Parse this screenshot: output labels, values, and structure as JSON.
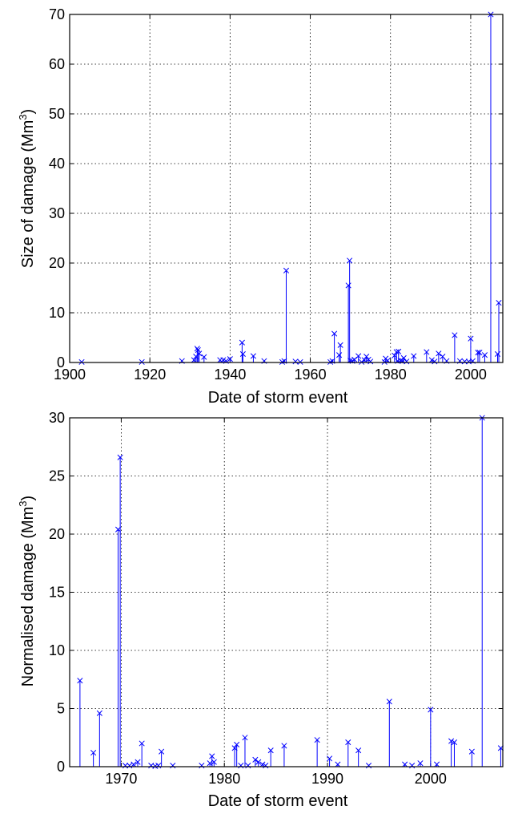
{
  "colors": {
    "series": "#0000ff",
    "axes": "#000000",
    "grid": "#000000",
    "background": "#ffffff"
  },
  "chart_data": [
    {
      "type": "stem",
      "title": "",
      "xlabel": "Date of storm event",
      "ylabel_main": "Size of damage (Mm",
      "ylabel_sup": "3",
      "ylabel_tail": ")",
      "xlim": [
        1900,
        2008
      ],
      "ylim": [
        0,
        70
      ],
      "xticks": [
        1900,
        1920,
        1940,
        1960,
        1980,
        2000
      ],
      "yticks": [
        0,
        10,
        20,
        30,
        40,
        50,
        60,
        70
      ],
      "grid": true,
      "marker": "x",
      "series": [
        {
          "x": [
            1903,
            1918,
            1928,
            1931,
            1931.5,
            1931.8,
            1932,
            1932.3,
            1933.5,
            1937.5,
            1938.3,
            1939,
            1940,
            1943,
            1943.2,
            1945.8,
            1948.5,
            1953,
            1953.5,
            1954,
            1956.3,
            1957.5,
            1965,
            1965.5,
            1966,
            1967.2,
            1967.5,
            1969.5,
            1969.8,
            1970,
            1970.5,
            1971,
            1972,
            1972.8,
            1973.5,
            1974,
            1974.5,
            1975,
            1978.5,
            1978.8,
            1979.3,
            1981,
            1981.5,
            1981.8,
            1982,
            1982.5,
            1983,
            1983.3,
            1984,
            1985.8,
            1989,
            1990.3,
            1991,
            1992,
            1993,
            1994,
            1996,
            1997.3,
            1998.5,
            1999.5,
            2000,
            2000.5,
            2001.8,
            2002.2,
            2003.5,
            2005,
            2006.7,
            2007
          ],
          "y": [
            0.1,
            0.1,
            0.3,
            0.5,
            1.2,
            2.8,
            2.5,
            1.8,
            1.1,
            0.5,
            0.5,
            0.3,
            0.7,
            4,
            1.7,
            1.3,
            0.3,
            0.1,
            0.3,
            18.5,
            0.2,
            0.1,
            0.1,
            0.3,
            5.8,
            1.5,
            3.5,
            15.5,
            20.5,
            0.4,
            0.3,
            0.6,
            1.3,
            0.1,
            0.5,
            1.2,
            0.6,
            0.2,
            0.1,
            0.8,
            0.4,
            1.4,
            2.1,
            0.3,
            2.2,
            0.4,
            0.3,
            0.9,
            0.2,
            1.3,
            2.1,
            0.5,
            0.2,
            1.8,
            1.2,
            0.3,
            5.5,
            0.3,
            0.2,
            0.2,
            4.8,
            0.3,
            2,
            2,
            1.5,
            70,
            1.7,
            12
          ]
        }
      ]
    },
    {
      "type": "stem",
      "title": "",
      "xlabel": "Date of storm event",
      "ylabel_main": "Normalised damage (Mm",
      "ylabel_sup": "3",
      "ylabel_tail": ")",
      "xlim": [
        1965,
        2007
      ],
      "ylim": [
        0,
        30
      ],
      "xticks": [
        1970,
        1980,
        1990,
        2000
      ],
      "yticks": [
        0,
        5,
        10,
        15,
        20,
        25,
        30
      ],
      "grid": true,
      "marker": "x",
      "series": [
        {
          "x": [
            1966,
            1967.3,
            1967.9,
            1969.7,
            1969.9,
            1970.4,
            1970.8,
            1971.2,
            1971.6,
            1972,
            1972.9,
            1973.3,
            1973.6,
            1973.9,
            1975,
            1977.8,
            1978.6,
            1978.8,
            1979,
            1981,
            1981.2,
            1981.6,
            1982,
            1982.3,
            1983,
            1983.3,
            1983.7,
            1984,
            1984.5,
            1985.8,
            1989,
            1990.2,
            1991,
            1992,
            1993,
            1994,
            1996,
            1997.5,
            1998.2,
            1999,
            2000,
            2000.6,
            2002,
            2002.3,
            2004,
            2005,
            2006.8
          ],
          "y": [
            7.4,
            1.2,
            4.6,
            20.4,
            26.6,
            0.1,
            0.1,
            0.2,
            0.4,
            2,
            0.1,
            0.05,
            0.1,
            1.3,
            0.1,
            0.1,
            0.3,
            0.9,
            0.4,
            1.6,
            1.9,
            0.1,
            2.5,
            0.1,
            0.6,
            0.4,
            0.2,
            0.1,
            1.4,
            1.8,
            2.3,
            0.7,
            0.2,
            2.1,
            1.4,
            0.1,
            5.6,
            0.2,
            0.1,
            0.3,
            4.9,
            0.2,
            2.2,
            2.1,
            1.3,
            30,
            1.6
          ]
        }
      ]
    }
  ]
}
